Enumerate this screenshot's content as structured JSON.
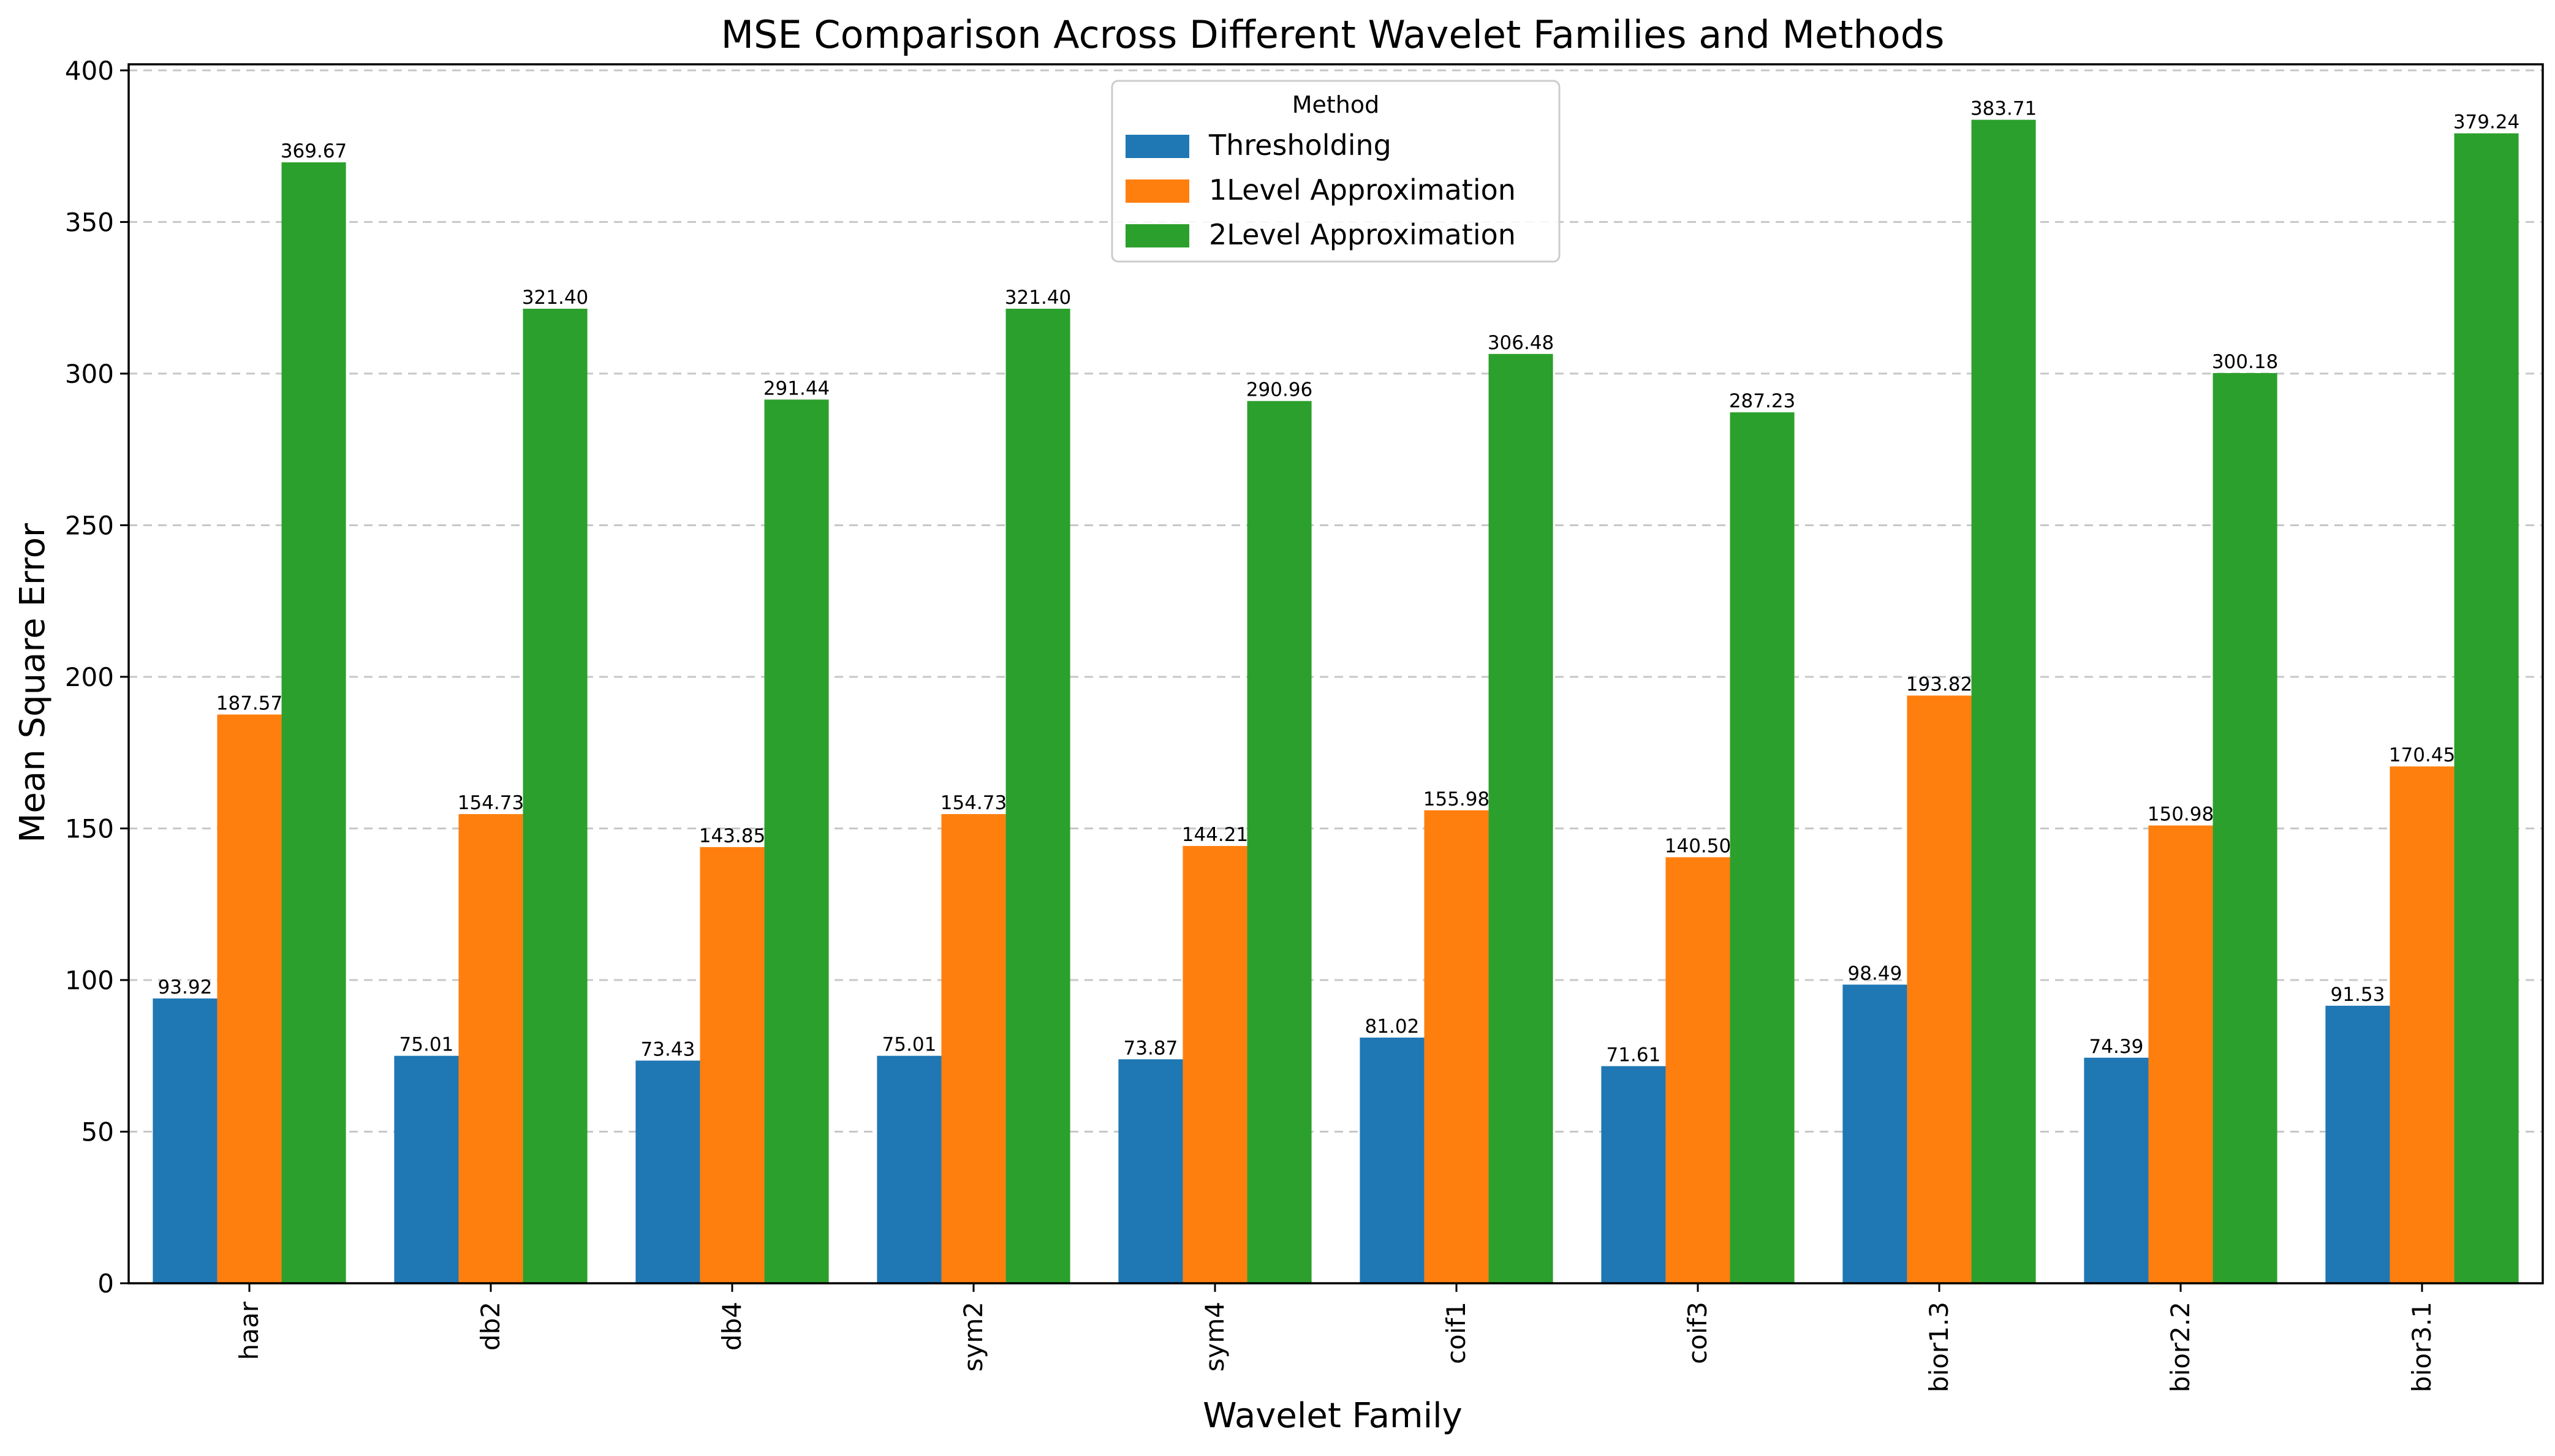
{
  "chart_data": {
    "type": "bar",
    "title": "MSE Comparison Across Different Wavelet Families and Methods",
    "xlabel": "Wavelet Family",
    "ylabel": "Mean Square Error",
    "ylim": [
      0,
      400
    ],
    "yticks": [
      0,
      50,
      100,
      150,
      200,
      250,
      300,
      350,
      400
    ],
    "grid": true,
    "legend_title": "Method",
    "legend_position": "top-center",
    "categories": [
      "haar",
      "db2",
      "db4",
      "sym2",
      "sym4",
      "coif1",
      "coif3",
      "bior1.3",
      "bior2.2",
      "bior3.1"
    ],
    "series": [
      {
        "name": "Thresholding",
        "color": "#1f77b4",
        "values": [
          93.92,
          75.01,
          73.43,
          75.01,
          73.87,
          81.02,
          71.61,
          98.49,
          74.39,
          91.53
        ]
      },
      {
        "name": "1Level Approximation",
        "color": "#ff7f0e",
        "values": [
          187.57,
          154.73,
          143.85,
          154.73,
          144.21,
          155.98,
          140.5,
          193.82,
          150.98,
          170.45
        ]
      },
      {
        "name": "2Level Approximation",
        "color": "#2ca02c",
        "values": [
          369.67,
          321.4,
          291.44,
          321.4,
          290.96,
          306.48,
          287.23,
          383.71,
          300.18,
          379.24
        ]
      }
    ]
  }
}
